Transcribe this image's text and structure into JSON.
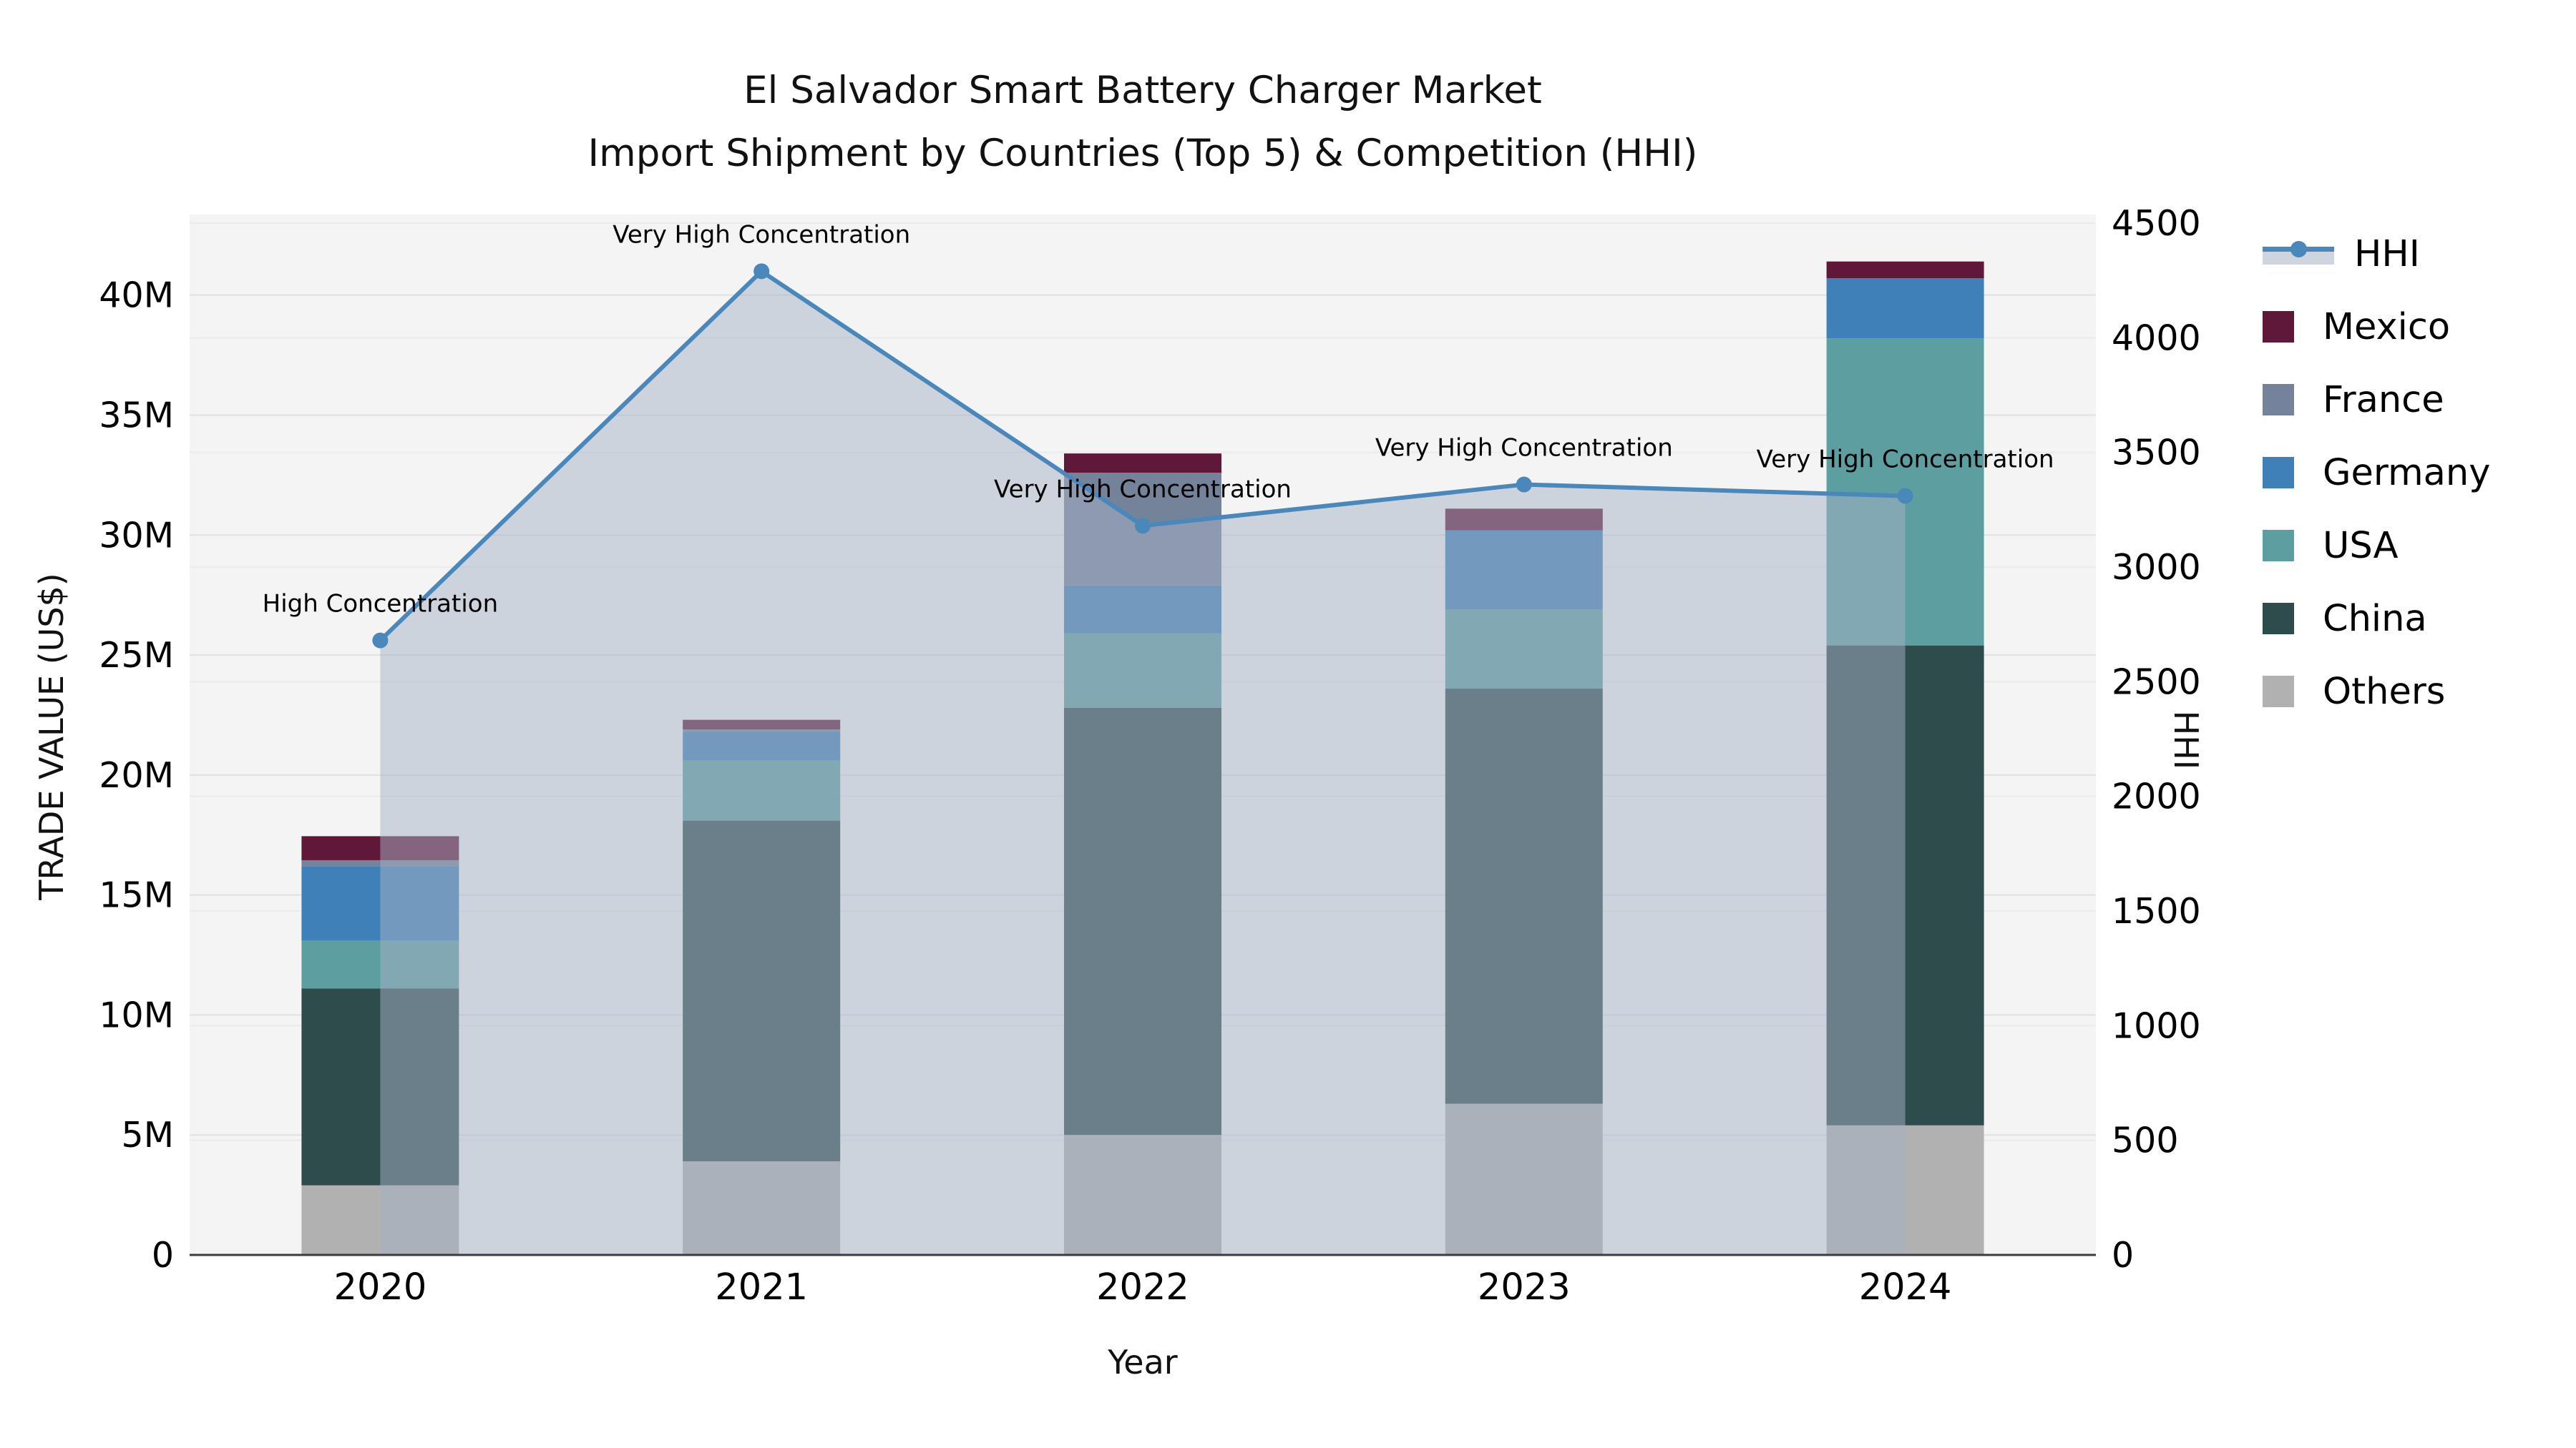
{
  "chart_data": {
    "type": "combo-stacked-bar-line-dual-axis",
    "title": "El Salvador Smart Battery Charger Market",
    "subtitle": "Import Shipment by Countries (Top 5) & Competition (HHI)",
    "xlabel": "Year",
    "ylabel_left": "TRADE VALUE (US$)",
    "ylabel_right": "HHI",
    "categories": [
      "2020",
      "2021",
      "2022",
      "2023",
      "2024"
    ],
    "unit": "million US$",
    "series": [
      {
        "name": "Others",
        "color": "#b1b1b1",
        "values": [
          2.9,
          3.9,
          5.0,
          6.3,
          5.4
        ]
      },
      {
        "name": "China",
        "color": "#2e4c4c",
        "values": [
          8.2,
          14.2,
          17.8,
          17.3,
          20.0
        ]
      },
      {
        "name": "USA",
        "color": "#5d9fa0",
        "values": [
          2.0,
          2.5,
          3.1,
          3.3,
          12.8
        ]
      },
      {
        "name": "Germany",
        "color": "#4080b8",
        "values": [
          3.1,
          1.2,
          2.0,
          3.3,
          2.5
        ]
      },
      {
        "name": "France",
        "color": "#75839a",
        "values": [
          0.25,
          0.1,
          4.7,
          0.0,
          0.0
        ]
      },
      {
        "name": "Mexico",
        "color": "#601838",
        "values": [
          1.0,
          0.4,
          0.8,
          0.9,
          0.7
        ]
      }
    ],
    "hhi": {
      "name": "HHI",
      "values": [
        2680,
        4290,
        3180,
        3360,
        3310
      ],
      "color": "#4a87bb",
      "area_fill": "rgba(166,178,198,0.5)",
      "marker_radius": 11,
      "line_width": 6
    },
    "annotations": [
      {
        "category": "2020",
        "text": "High Concentration"
      },
      {
        "category": "2021",
        "text": "Very High Concentration"
      },
      {
        "category": "2022",
        "text": "Very High Concentration"
      },
      {
        "category": "2023",
        "text": "Very High Concentration"
      },
      {
        "category": "2024",
        "text": "Very High Concentration"
      }
    ],
    "axis_left": {
      "max": 43.0,
      "ticks": [
        {
          "v": 0,
          "label": "0"
        },
        {
          "v": 5,
          "label": "5M"
        },
        {
          "v": 10,
          "label": "10M"
        },
        {
          "v": 15,
          "label": "15M"
        },
        {
          "v": 20,
          "label": "20M"
        },
        {
          "v": 25,
          "label": "25M"
        },
        {
          "v": 30,
          "label": "30M"
        },
        {
          "v": 35,
          "label": "35M"
        },
        {
          "v": 40,
          "label": "40M"
        }
      ]
    },
    "axis_right": {
      "max": 4500,
      "ticks": [
        {
          "v": 0,
          "label": "0"
        },
        {
          "v": 500,
          "label": "500"
        },
        {
          "v": 1000,
          "label": "1000"
        },
        {
          "v": 1500,
          "label": "1500"
        },
        {
          "v": 2000,
          "label": "2000"
        },
        {
          "v": 2500,
          "label": "2500"
        },
        {
          "v": 3000,
          "label": "3000"
        },
        {
          "v": 3500,
          "label": "3500"
        },
        {
          "v": 4000,
          "label": "4000"
        },
        {
          "v": 4500,
          "label": "4500"
        }
      ]
    },
    "legend": {
      "items": [
        "HHI",
        "Mexico",
        "France",
        "Germany",
        "USA",
        "China",
        "Others"
      ]
    },
    "colors": {
      "plot_bg": "#f4f4f4",
      "grid_left": "#dfe1e3",
      "grid_right": "#e9ebed",
      "axis_line": "#3c3c3c",
      "text": "#000000"
    }
  }
}
